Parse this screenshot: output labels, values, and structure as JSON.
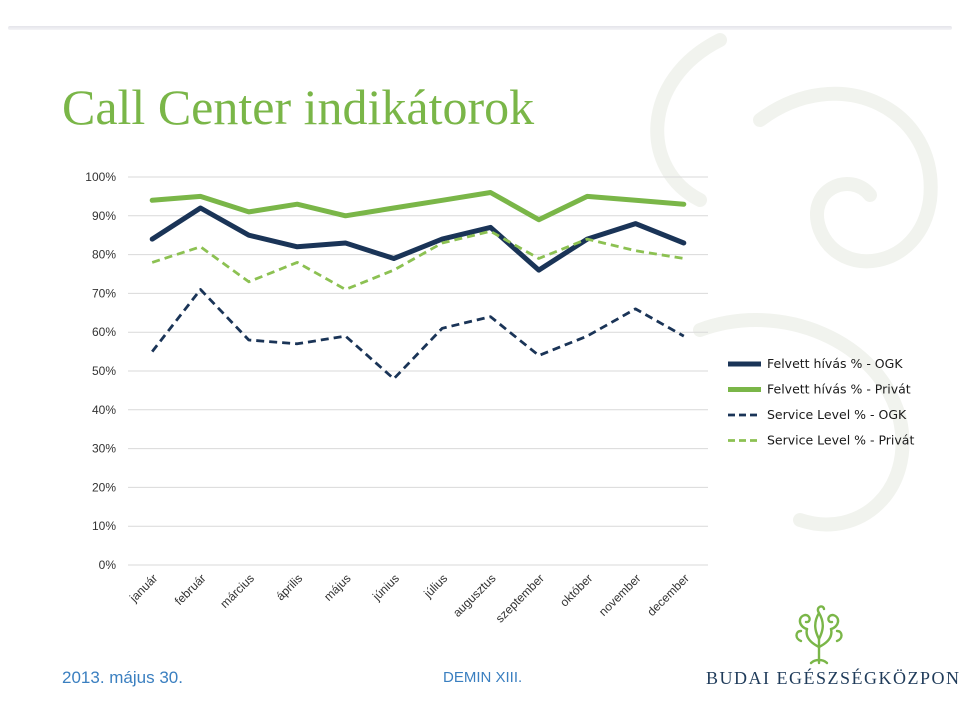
{
  "slide": {
    "title": "Call Center indikátorok",
    "footer_date": "2013. május 30.",
    "footer_event": "DEMIN XIII.",
    "logo_text": "BUDAI EGÉSZSÉGKÖZPONT",
    "logo_icon": "tree-icon",
    "colors": {
      "title": "#7ab648",
      "navy": "#1a3457",
      "green": "#7ab648",
      "light_green": "#8cc152",
      "footer": "#3a7fc0"
    }
  },
  "chart_data": {
    "type": "line",
    "title": "",
    "xlabel": "",
    "ylabel": "",
    "categories": [
      "január",
      "február",
      "március",
      "április",
      "május",
      "június",
      "július",
      "augusztus",
      "szeptember",
      "október",
      "november",
      "december"
    ],
    "yticks": [
      "0%",
      "10%",
      "20%",
      "30%",
      "40%",
      "50%",
      "60%",
      "70%",
      "80%",
      "90%",
      "100%"
    ],
    "ylim": [
      0,
      100
    ],
    "grid": true,
    "legend_position": "right",
    "series": [
      {
        "name": "Felvett hívás % - OGK",
        "color": "#1a3457",
        "style": "solid",
        "values": [
          84,
          92,
          85,
          82,
          83,
          79,
          84,
          87,
          76,
          84,
          88,
          83
        ]
      },
      {
        "name": "Felvett hívás % - Privát",
        "color": "#7ab648",
        "style": "solid",
        "values": [
          94,
          95,
          91,
          93,
          90,
          92,
          94,
          96,
          89,
          95,
          94,
          93
        ]
      },
      {
        "name": "Service Level % - OGK",
        "color": "#1a3457",
        "style": "dashed",
        "values": [
          55,
          71,
          58,
          57,
          59,
          48,
          61,
          64,
          54,
          59,
          66,
          59
        ]
      },
      {
        "name": "Service Level % - Privát",
        "color": "#8cc152",
        "style": "dashed",
        "values": [
          78,
          82,
          73,
          78,
          71,
          76,
          83,
          86,
          79,
          84,
          81,
          79
        ]
      }
    ]
  }
}
